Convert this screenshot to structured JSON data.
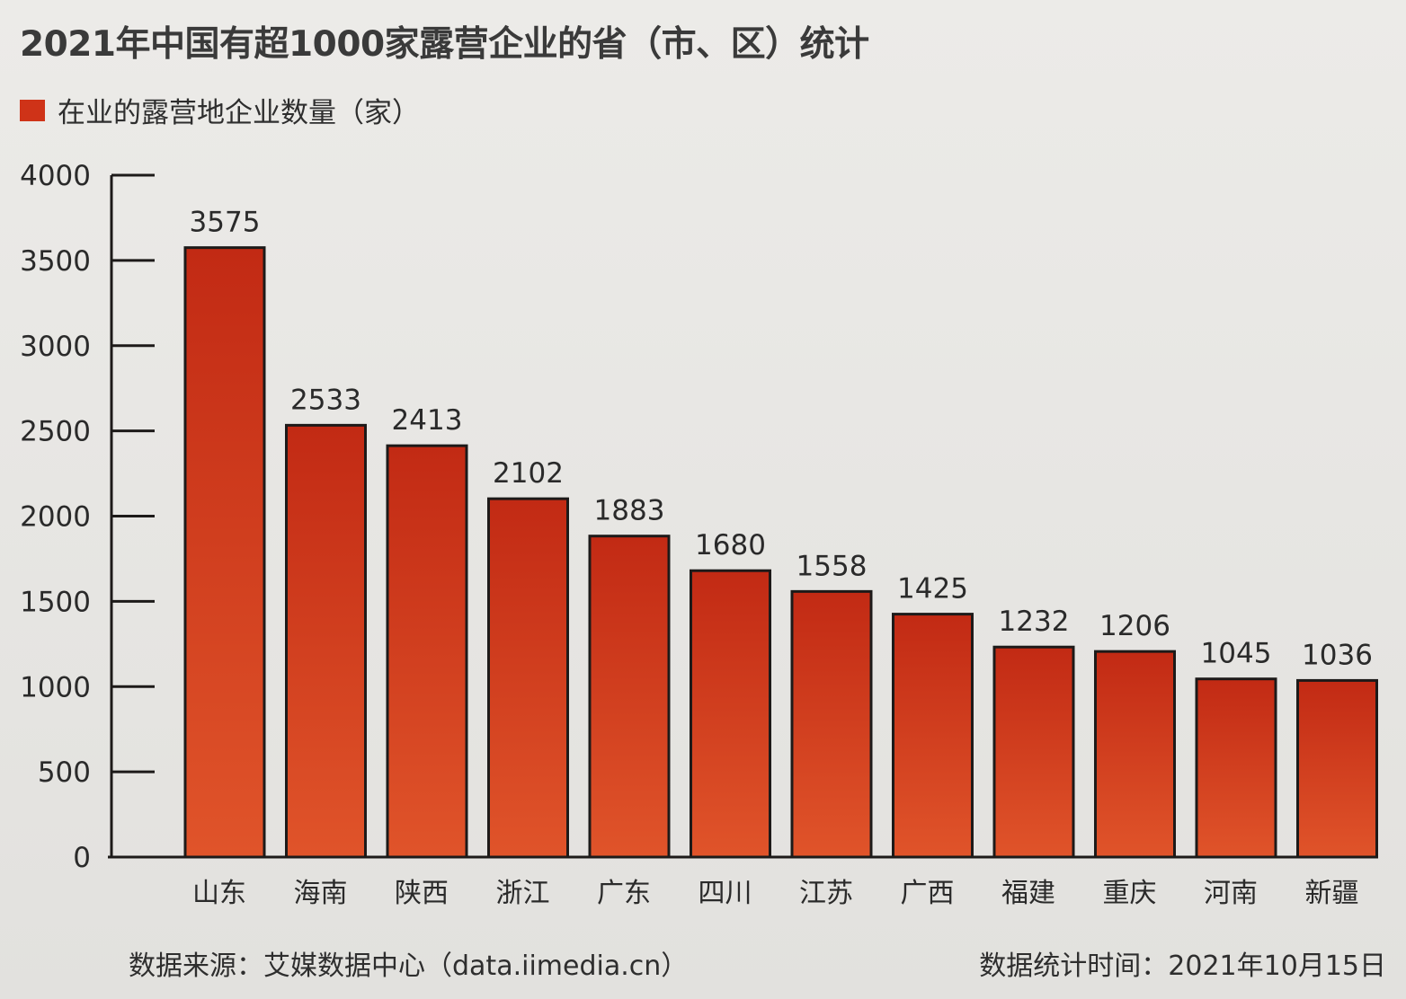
{
  "title": "2021年中国有超1000家露营企业的省（市、区）统计",
  "legend": {
    "label": "在业的露营地企业数量（家）",
    "color": "#cf3318"
  },
  "footer": {
    "source": "数据来源：艾媒数据中心（data.iimedia.cn）",
    "time": "数据统计时间：2021年10月15日"
  },
  "colors": {
    "bar_top": "#c22a14",
    "bar_bottom": "#e0542a",
    "bar_edge": "#1d1a19",
    "axis": "#1d1a19",
    "text": "#2a2a2a"
  },
  "chart_data": {
    "type": "bar",
    "title": "2021年中国有超1000家露营企业的省（市、区）统计",
    "categories": [
      "山东",
      "海南",
      "陕西",
      "浙江",
      "广东",
      "四川",
      "江苏",
      "广西",
      "福建",
      "重庆",
      "河南",
      "新疆"
    ],
    "series": [
      {
        "name": "在业的露营地企业数量（家）",
        "values": [
          3575,
          2533,
          2413,
          2102,
          1883,
          1680,
          1558,
          1425,
          1232,
          1206,
          1045,
          1036
        ]
      }
    ],
    "yticks": [
      0,
      500,
      1000,
      1500,
      2000,
      2500,
      3000,
      3500,
      4000
    ],
    "ylim": [
      0,
      4000
    ],
    "grid": false,
    "legend_position": "top-left"
  }
}
